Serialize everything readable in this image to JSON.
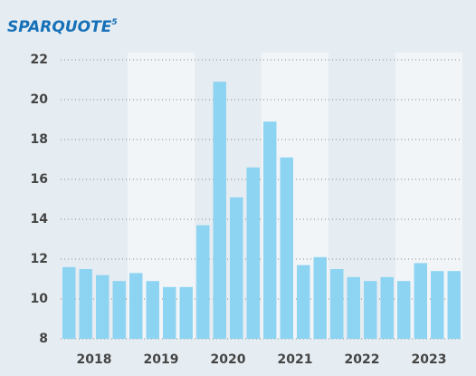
{
  "chart_data": {
    "type": "bar",
    "title": "SPARQUOTE",
    "title_footnote": "5",
    "year_labels": [
      "2018",
      "2019",
      "2020",
      "2021",
      "2022",
      "2023"
    ],
    "values": [
      11.6,
      11.5,
      11.2,
      10.9,
      11.3,
      10.9,
      10.6,
      10.6,
      13.7,
      20.9,
      15.1,
      16.6,
      18.9,
      17.1,
      11.7,
      12.1,
      11.5,
      11.1,
      10.9,
      11.1,
      10.9,
      11.8,
      11.4,
      11.4
    ],
    "color": "#8dd3f2",
    "ylim": [
      8,
      22
    ],
    "yticks": [
      8,
      10,
      12,
      14,
      16,
      18,
      20,
      22
    ],
    "grid": true
  }
}
